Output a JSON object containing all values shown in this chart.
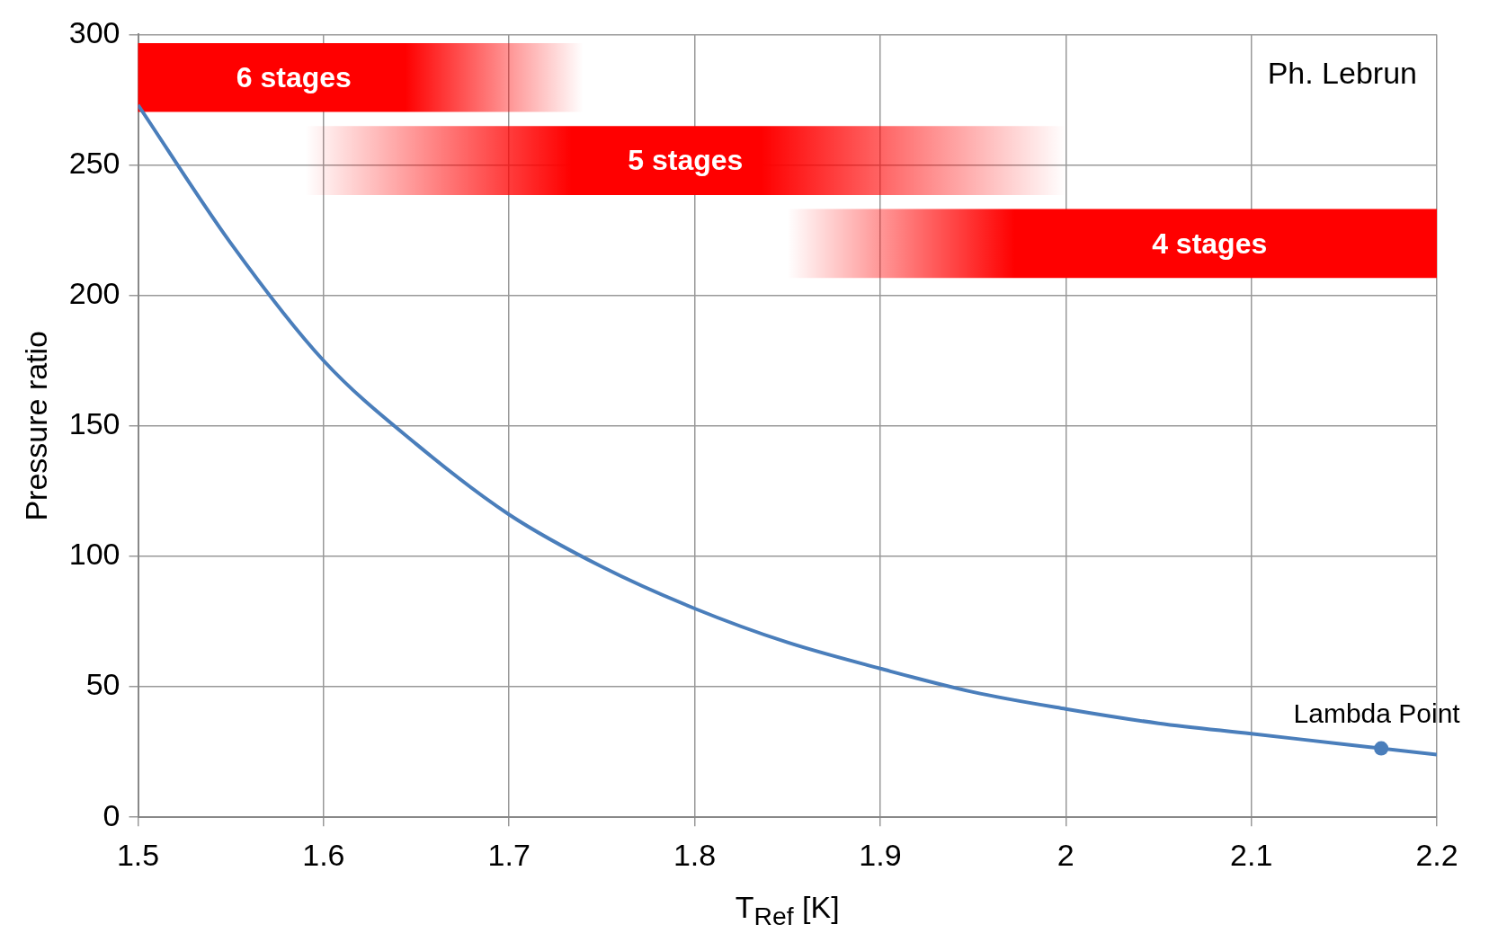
{
  "chart_data": {
    "type": "line",
    "xlabel": "T$_{Ref}$ [K]",
    "ylabel": "Pressure ratio",
    "x": [
      1.5,
      1.55,
      1.6,
      1.65,
      1.7,
      1.75,
      1.8,
      1.85,
      1.9,
      1.95,
      2.0,
      2.05,
      2.1,
      2.15,
      2.2
    ],
    "series": [
      {
        "color": "#4a7ebb",
        "values": [
          273,
          220,
          175,
          143,
          116,
          96,
          80,
          67,
          57,
          48,
          41.5,
          36,
          32,
          28,
          24
        ]
      }
    ],
    "xlim": [
      1.5,
      2.2
    ],
    "xticks": [
      1.5,
      1.6,
      1.7,
      1.8,
      1.9,
      2,
      2.1,
      2.2
    ],
    "ylim": [
      0,
      300
    ],
    "yticks": [
      0,
      50,
      100,
      150,
      200,
      250,
      300
    ],
    "grid": true,
    "legend": false,
    "marker": "none",
    "line_style": "solid",
    "bands": [
      {
        "axis": "x",
        "from": 1.5,
        "to": 1.74,
        "label": "6 stages",
        "color": "#ff0000"
      },
      {
        "axis": "x",
        "from": 1.59,
        "to": 2.0,
        "label": "5 stages",
        "color": "#ff0000"
      },
      {
        "axis": "x",
        "from": 1.85,
        "to": 2.2,
        "label": "4 stages",
        "color": "#ff0000"
      }
    ],
    "annotations": [
      "Ph. Lebrun",
      {
        "text": "Lambda Point",
        "x": 2.17,
        "y": 26.4
      }
    ]
  }
}
